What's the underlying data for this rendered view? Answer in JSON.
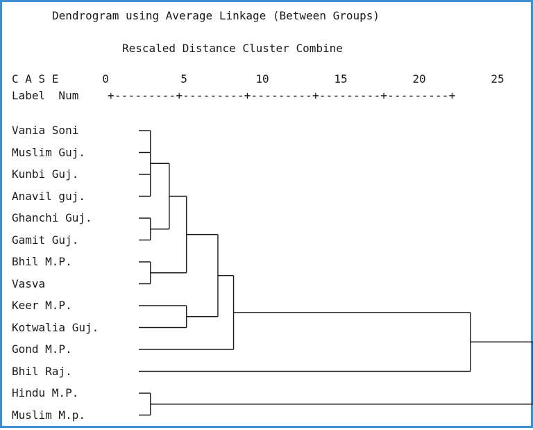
{
  "title": "Dendrogram using Average Linkage (Between Groups)",
  "subtitle": "Rescaled Distance Cluster Combine",
  "header": {
    "case": "C A S E",
    "label_num": "Label  Num",
    "ruler": "+---------+---------+---------+---------+---------+"
  },
  "scale": {
    "ticks": [
      "0",
      "5",
      "10",
      "15",
      "20",
      "25"
    ],
    "max": 25
  },
  "cases": [
    {
      "label": "Vania Soni"
    },
    {
      "label": "Muslim Guj."
    },
    {
      "label": "Kunbi Guj."
    },
    {
      "label": "Anavil guj."
    },
    {
      "label": "Ghanchi Guj."
    },
    {
      "label": "Gamit Guj."
    },
    {
      "label": "Bhil M.P."
    },
    {
      "label": "Vasva"
    },
    {
      "label": "Keer M.P."
    },
    {
      "label": "Kotwalia Guj."
    },
    {
      "label": "Gond M.P."
    },
    {
      "label": "Bhil Raj."
    },
    {
      "label": "Hindu M.P."
    },
    {
      "label": "Muslim M.p."
    }
  ],
  "merges": [
    {
      "members": [
        0,
        1,
        2,
        3
      ],
      "distance": 2.6
    },
    {
      "members": [
        4,
        5
      ],
      "distance": 2.6
    },
    {
      "members": [
        6,
        7
      ],
      "distance": 2.6
    },
    {
      "members": [
        12,
        13
      ],
      "distance": 2.6
    },
    {
      "members": [
        "c0",
        "c1"
      ],
      "distance": 3.8
    },
    {
      "members": [
        "c4",
        "c2"
      ],
      "distance": 4.9
    },
    {
      "members": [
        8,
        9
      ],
      "distance": 4.9
    },
    {
      "members": [
        "c5",
        "c6"
      ],
      "distance": 6.9
    },
    {
      "members": [
        "c7",
        10
      ],
      "distance": 7.9
    },
    {
      "members": [
        "c8",
        11
      ],
      "distance": 23.0
    },
    {
      "members": [
        "c9",
        "c3"
      ],
      "distance": 27.0
    }
  ]
}
